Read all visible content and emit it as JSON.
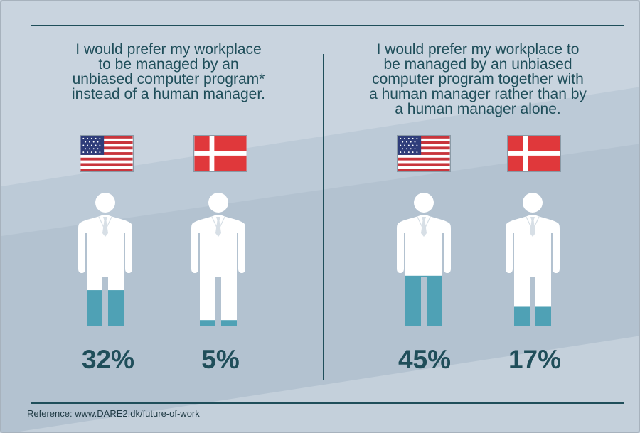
{
  "panels": [
    {
      "title": "I would prefer my workplace\nto be managed by an\nunbiased computer program*\ninstead of a human manager."
    },
    {
      "title": "I would prefer my workplace to\nbe managed by an unbiased\ncomputer program together with\na human manager rather than by\na human manager alone."
    }
  ],
  "flags": {
    "usa": "usa-flag-icon",
    "denmark": "denmark-flag-icon"
  },
  "chart_data": [
    {
      "type": "pictograph",
      "title": "I would prefer my workplace to be managed by an unbiased computer program* instead of a human manager.",
      "categories": [
        "USA",
        "Denmark"
      ],
      "values": [
        32,
        5
      ],
      "labels": [
        "32%",
        "5%"
      ]
    },
    {
      "type": "pictograph",
      "title": "I would prefer my workplace to be managed by an unbiased computer program together with a human manager rather than by a human manager alone.",
      "categories": [
        "USA",
        "Denmark"
      ],
      "values": [
        45,
        17
      ],
      "labels": [
        "45%",
        "17%"
      ]
    }
  ],
  "colors": {
    "fill": "#4fa1b5",
    "figure": "#ffffff",
    "text": "#1f4e5a"
  },
  "reference": "Reference: www.DARE2.dk/future-of-work"
}
